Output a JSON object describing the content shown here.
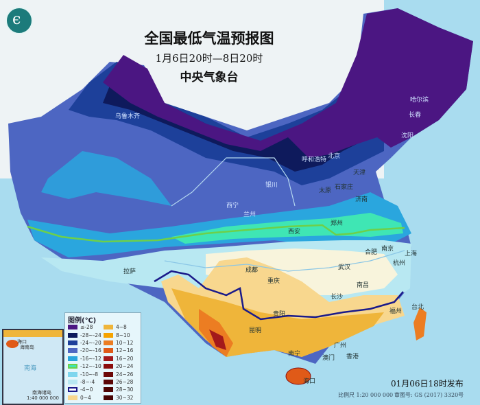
{
  "header": {
    "title": "全国最低气温预报图",
    "period": "1月6日20时—8日20时",
    "issuer": "中央气象台",
    "logo_icon": "cma-logo-icon"
  },
  "legend": {
    "title": "图例(℃)",
    "items": [
      {
        "label": "≤-28",
        "color": "#4b1682"
      },
      {
        "label": "-28~-24",
        "color": "#0e1a5c"
      },
      {
        "label": "-24~-20",
        "color": "#1d409a"
      },
      {
        "label": "-20~-16",
        "color": "#4d66c2"
      },
      {
        "label": "-16~-12",
        "color": "#2aa6de"
      },
      {
        "label": "-12~-10",
        "color": "#3fe6b4",
        "border": "#6dd04a"
      },
      {
        "label": "-10~-8",
        "color": "#7fd6ee"
      },
      {
        "label": "-8~-4",
        "color": "#b8e8f2"
      },
      {
        "label": "-4~0",
        "color": "#ffffff",
        "border": "#1a1a8a"
      },
      {
        "label": "0~4",
        "color": "#f8d78e"
      },
      {
        "label": "4~8",
        "color": "#efb53a"
      },
      {
        "label": "8~10",
        "color": "#f5a300"
      },
      {
        "label": "10~12",
        "color": "#ec7d22"
      },
      {
        "label": "12~16",
        "color": "#e05a18"
      },
      {
        "label": "16~20",
        "color": "#a3191b"
      },
      {
        "label": "20~24",
        "color": "#8b0d0d"
      },
      {
        "label": "24~26",
        "color": "#6c0808"
      },
      {
        "label": "26~28",
        "color": "#5c0606"
      },
      {
        "label": "28~30",
        "color": "#4f0404"
      },
      {
        "label": "30~32",
        "color": "#470303"
      }
    ]
  },
  "cities": [
    "乌鲁木齐",
    "拉萨",
    "西宁",
    "兰州",
    "银川",
    "呼和浩特",
    "北京",
    "天津",
    "石家庄",
    "太原",
    "济南",
    "郑州",
    "西安",
    "成都",
    "重庆",
    "贵阳",
    "昆明",
    "南宁",
    "广州",
    "香港",
    "澳门",
    "海口",
    "长沙",
    "南昌",
    "福州",
    "台北",
    "武汉",
    "合肥",
    "南京",
    "上海",
    "杭州",
    "哈尔滨",
    "长春",
    "沈阳"
  ],
  "inset": {
    "label_haikou": "海口",
    "label_hainan": "海南岛",
    "label_sea": "南海",
    "label_islands": "南海诸岛",
    "scale": "1:40 000 000"
  },
  "footer": {
    "issued": "01月06日18时发布",
    "scale": "比例尺 1:20 000 000",
    "approval": "审图号: GS (2017) 3320号"
  }
}
